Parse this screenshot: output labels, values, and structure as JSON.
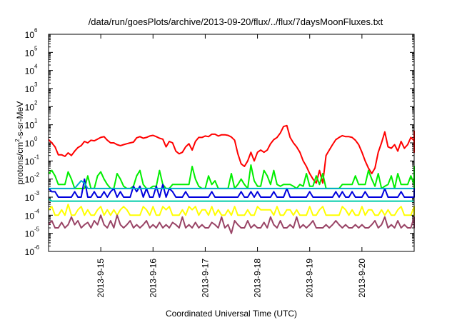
{
  "chart_data": {
    "type": "line",
    "title": "/data/run/goesPlots/archive/2013-09-20/flux/../flux/7daysMoonFluxes.txt",
    "xlabel": "Coordinated Universal Time (UTC)",
    "ylabel_base": "protons/cm",
    "ylabel_sup": "2",
    "ylabel_rest": "-s-sr-MeV",
    "yscale": "log",
    "ylim": [
      1e-06,
      1000000.0
    ],
    "ytick_exponents": [
      -6,
      -5,
      -4,
      -3,
      -2,
      -1,
      0,
      1,
      2,
      3,
      4,
      5,
      6
    ],
    "ytick_base": "10",
    "x_domain": [
      "2013-09-14",
      "2013-09-21"
    ],
    "x_ticks": [
      "2013-9-15",
      "2013-9-16",
      "2013-9-17",
      "2013-9-18",
      "2013-9-19",
      "2013-9-20"
    ],
    "x_samples_per_day": 16,
    "series": [
      {
        "color": "#ff0000",
        "values": [
          1.5,
          1,
          0.6,
          0.22,
          0.22,
          0.18,
          0.28,
          0.2,
          0.35,
          0.55,
          0.7,
          1.2,
          1,
          1.4,
          1.3,
          1.6,
          2,
          2.2,
          1.4,
          1,
          1,
          0.8,
          0.7,
          0.8,
          0.9,
          1,
          1.1,
          1.9,
          2.2,
          1.8,
          2,
          2.4,
          2.6,
          2.2,
          1.8,
          1.6,
          0.6,
          1.2,
          1,
          0.35,
          0.25,
          0.3,
          0.6,
          0.9,
          0.4,
          1.2,
          2,
          2,
          2.4,
          2.2,
          3,
          3,
          2.4,
          2.8,
          2.8,
          2.6,
          2.1,
          1.4,
          0.25,
          0.07,
          0.05,
          0.1,
          0.3,
          0.1,
          0.3,
          0.4,
          0.3,
          0.4,
          0.9,
          1.5,
          2,
          3.5,
          8,
          9,
          2,
          1,
          0.6,
          0.3,
          0.1,
          0.05,
          0.02,
          0.01,
          0.006,
          0.03,
          0.006,
          0.2,
          0.4,
          0.8,
          1.5,
          2,
          2.5,
          2.2,
          2.2,
          2,
          1.4,
          0.8,
          0.3,
          0.1,
          0.04,
          0.02,
          0.04,
          0.3,
          1,
          4,
          0.6,
          0.5,
          0.8,
          0.35,
          1.2,
          0.5,
          0.8,
          2,
          1.3,
          1.5,
          2.7,
          1.4,
          1.8,
          1.7,
          2,
          1.2,
          1.6,
          1.3,
          2.2,
          1.6,
          1,
          1.6,
          1.2,
          1.5,
          2,
          0.35,
          0.45,
          0.5,
          0.6,
          0.9,
          0.3,
          0.7,
          0.55,
          0.7,
          1,
          1.4,
          2.5,
          2.1,
          3,
          2.5,
          3.5,
          2.6,
          4.5,
          2.5,
          3.3,
          3
        ]
      },
      {
        "color": "#00ee00",
        "values": [
          0.02,
          0.03,
          0.015,
          0.005,
          0.005,
          0.005,
          0.025,
          0.01,
          0.003,
          0.003,
          0.003,
          0.003,
          0.015,
          0.003,
          0.003,
          0.015,
          0.025,
          0.01,
          0.005,
          0.003,
          0.003,
          0.02,
          0.01,
          0.004,
          0.003,
          0.003,
          0.004,
          0.015,
          0.03,
          0.005,
          0.003,
          0.003,
          0.004,
          0.004,
          0.03,
          0.005,
          0.003,
          0.003,
          0.005,
          0.005,
          0.005,
          0.005,
          0.005,
          0.005,
          0.05,
          0.01,
          0.004,
          0.003,
          0.003,
          0.015,
          0.005,
          0.008,
          0.003,
          0.003,
          0.003,
          0.003,
          0.02,
          0.003,
          0.005,
          0.01,
          0.005,
          0.003,
          0.06,
          0.008,
          0.004,
          0.004,
          0.03,
          0.015,
          0.005,
          0.03,
          0.005,
          0.004,
          0.005,
          0.005,
          0.005,
          0.004,
          0.003,
          0.005,
          0.004,
          0.02,
          0.004,
          0.004,
          0.015,
          0.005,
          0.02,
          0.003,
          0.003,
          0.003,
          0.003,
          0.003,
          0.005,
          0.005,
          0.005,
          0.005,
          0.015,
          0.005,
          0.005,
          0.005,
          0.03,
          0.01,
          0.004,
          0.02,
          0.003,
          0.004,
          0.005,
          0.015,
          0.003,
          0.02,
          0.005,
          0.005,
          0.005,
          0.015,
          0.005,
          0.005,
          0.02,
          0.003,
          0.003,
          0.003,
          0.005,
          0.003,
          0.003,
          0.004,
          0.005,
          0.02,
          0.03,
          0.005,
          0.02,
          0.005,
          0.05,
          0.005,
          0.02,
          0.005,
          0.004,
          0.03,
          0.005,
          0.005,
          0.03,
          0.01,
          0.003,
          0.03,
          0.005,
          0.005,
          0.005,
          0.004,
          0.05,
          0.01,
          0.02,
          0.02
        ]
      },
      {
        "color": "#0000dd",
        "values": [
          0.003,
          0.002,
          0.002,
          0.001,
          0.001,
          0.001,
          0.001,
          0.001,
          0.002,
          0.001,
          0.001,
          0.01,
          0.001,
          0.001,
          0.002,
          0.001,
          0.001,
          0.002,
          0.001,
          0.002,
          0.003,
          0.001,
          0.002,
          0.001,
          0.001,
          0.001,
          0.004,
          0.002,
          0.004,
          0.001,
          0.003,
          0.001,
          0.001,
          0.004,
          0.001,
          0.005,
          0.001,
          0.003,
          0.002,
          0.001,
          0.001,
          0.001,
          0.002,
          0.001,
          0.001,
          0.001,
          0.001,
          0.001,
          0.001,
          0.001,
          0.002,
          0.001,
          0.001,
          0.001,
          0.001,
          0.001,
          0.001,
          0.001,
          0.001,
          0.002,
          0.001,
          0.001,
          0.002,
          0.001,
          0.002,
          0.001,
          0.001,
          0.001,
          0.001,
          0.002,
          0.001,
          0.001,
          0.001,
          0.003,
          0.001,
          0.001,
          0.001,
          0.001,
          0.001,
          0.001,
          0.002,
          0.001,
          0.001,
          0.001,
          0.001,
          0.001,
          0.001,
          0.001,
          0.002,
          0.001,
          0.002,
          0.001,
          0.001,
          0.002,
          0.001,
          0.001,
          0.001,
          0.002,
          0.001,
          0.001,
          0.001,
          0.001,
          0.001,
          0.003,
          0.001,
          0.001,
          0.001,
          0.001,
          0.002,
          0.001,
          0.001,
          0.001,
          0.001,
          0.001,
          0.001,
          0.003,
          0.001,
          0.001,
          0.002,
          0.001,
          0.001,
          0.001,
          0.001,
          0.001,
          0.001,
          0.001,
          0.001,
          0.001,
          0.001,
          0.001,
          0.001,
          0.001,
          0.003,
          0.001,
          0.001,
          0.001,
          0.001,
          0.001,
          0.001,
          0.002,
          0.001,
          0.001,
          0.001,
          0.001,
          0.001,
          0.001,
          0.001,
          0.001
        ]
      },
      {
        "color": "#00aacc",
        "values": [
          0.003,
          0.003,
          0.003,
          0.003,
          0.003,
          0.003,
          0.003,
          0.003,
          0.003,
          0.005,
          0.008,
          0.006,
          0.003,
          0.003,
          0.003,
          0.003,
          0.003,
          0.003,
          0.003,
          0.003,
          0.003,
          0.003,
          0.003,
          0.003,
          0.003,
          0.003,
          0.003,
          0.003,
          0.003,
          0.003,
          0.003,
          0.003,
          0.003,
          0.003,
          0.003,
          0.003,
          0.003,
          0.003,
          0.003,
          0.003,
          0.003,
          0.003,
          0.003,
          0.003,
          0.003,
          0.003,
          0.003,
          0.003,
          0.003,
          0.003,
          0.003,
          0.003,
          0.003,
          0.003,
          0.003,
          0.003,
          0.003,
          0.003,
          0.003,
          0.003,
          0.003,
          0.003,
          0.003,
          0.003,
          0.003,
          0.003,
          0.003,
          0.003,
          0.003,
          0.003,
          0.003,
          0.003,
          0.003,
          0.003,
          0.003,
          0.003,
          0.003,
          0.003,
          0.003,
          0.003,
          0.003,
          0.003,
          0.003,
          0.003,
          0.003,
          0.003,
          0.003,
          0.003,
          0.003,
          0.003,
          0.003,
          0.003,
          0.003,
          0.003,
          0.003,
          0.003,
          0.003,
          0.003,
          0.003,
          0.003,
          0.003,
          0.003,
          0.003,
          0.003,
          0.003,
          0.003,
          0.003,
          0.003,
          0.003,
          0.003,
          0.003,
          0.003,
          0.003,
          0.003,
          0.003,
          0.003,
          0.003,
          0.003,
          0.003,
          0.003,
          0.003,
          0.003,
          0.003,
          0.003,
          0.003,
          0.003,
          0.003,
          0.003,
          0.003,
          0.003,
          0.003,
          0.003,
          0.003,
          0.003,
          0.003,
          0.003,
          0.003,
          0.003,
          0.003,
          0.003,
          0.003,
          0.003,
          0.003,
          0.003,
          0.003,
          0.003,
          0.003,
          0.003,
          0.003,
          0.003
        ]
      },
      {
        "color": "#00ccaa",
        "values": [
          0.0008,
          0.0006,
          0.0006,
          0.0006,
          0.0006,
          0.0006,
          0.0006,
          0.0006,
          0.0006,
          0.0006,
          0.0006,
          0.0006,
          0.0006,
          0.0006,
          0.0006,
          0.0006,
          0.0006,
          0.0006,
          0.0006,
          0.0006,
          0.0006,
          0.0006,
          0.0006,
          0.0006,
          0.0006,
          0.0006,
          0.0006,
          0.0006,
          0.0006,
          0.0006,
          0.0006,
          0.0006,
          0.0006,
          0.0006,
          0.0006,
          0.0006,
          0.0006,
          0.0006,
          0.0006,
          0.0006,
          0.0006,
          0.0006,
          0.0006,
          0.0006,
          0.0006,
          0.0006,
          0.0006,
          0.0006,
          0.0006,
          0.0006,
          0.0006,
          0.0006,
          0.0006,
          0.0006,
          0.0006,
          0.0006,
          0.0006,
          0.0006,
          0.0006,
          0.0006,
          0.0006,
          0.0006,
          0.0006,
          0.0006,
          0.0006,
          0.0006,
          0.0006,
          0.0006,
          0.0006,
          0.0006,
          0.0006,
          0.0006,
          0.0006,
          0.0006,
          0.0006,
          0.0006,
          0.0006,
          0.0006,
          0.0006,
          0.0006,
          0.0006,
          0.0006,
          0.0006,
          0.0006,
          0.0006,
          0.0006,
          0.0006,
          0.0006,
          0.0006,
          0.0006,
          0.0006,
          0.0006,
          0.0006,
          0.0006,
          0.0006,
          0.0006,
          0.0006,
          0.0006,
          0.0006,
          0.0006,
          0.0006,
          0.0006,
          0.0006,
          0.0006,
          0.0006,
          0.0006,
          0.0006,
          0.0006,
          0.0006,
          0.0006,
          0.0006,
          0.0006,
          0.0006,
          0.0006,
          0.0006,
          0.0006,
          0.0006,
          0.0006,
          0.0006,
          0.0006,
          0.0006,
          0.0006,
          0.0006,
          0.0006,
          0.0006,
          0.0006,
          0.0006,
          0.0006,
          0.0006,
          0.0006,
          0.0006,
          0.0006,
          0.0006,
          0.0006,
          0.0006,
          0.0006,
          0.0006,
          0.0006,
          0.0006,
          0.0006,
          0.0006,
          0.0006,
          0.0006,
          0.0006,
          0.0006,
          0.0006,
          0.0006,
          0.0006,
          0.0006,
          0.0006,
          0.0006,
          0.0006
        ]
      },
      {
        "color": "#ffff00",
        "values": [
          0.0002,
          0.0003,
          0.0001,
          0.0001,
          0.0002,
          0.0001,
          0.0004,
          0.0001,
          0.0001,
          0.0002,
          0.0003,
          0.0001,
          0.0002,
          0.0001,
          0.0001,
          0.0002,
          0.0003,
          0.0001,
          0.0002,
          0.0001,
          0.0002,
          0.0001,
          0.0002,
          0.0003,
          0.0002,
          0.0001,
          0.0001,
          0.0001,
          0.0001,
          0.0003,
          0.0002,
          0.0001,
          0.0003,
          0.0001,
          0.0001,
          0.0003,
          0.0002,
          0.0003,
          0.0001,
          0.0001,
          0.0001,
          0.0002,
          0.0001,
          0.0003,
          0.0002,
          0.0003,
          0.0001,
          0.0002,
          0.0002,
          0.0001,
          0.0003,
          0.0001,
          0.0002,
          0.0001,
          0.0001,
          0.0002,
          0.0001,
          0.0003,
          0.0001,
          0.0001,
          0.0001,
          0.0002,
          0.0001,
          0.0001,
          0.0003,
          0.0002,
          0.0002,
          0.0002,
          0.0002,
          0.0001,
          0.0003,
          0.0001,
          0.0001,
          0.0002,
          0.0002,
          0.0001,
          0.0002,
          0.0001,
          0.0001,
          0.0001,
          0.0003,
          0.0001,
          0.0001,
          0.0002,
          0.0003,
          0.0001,
          0.0001,
          0.0001,
          0.0001,
          0.0001,
          0.0003,
          0.0002,
          0.0001,
          0.0002,
          0.0001,
          0.0001,
          0.0003,
          0.0001,
          0.0002,
          0.0002,
          0.0001,
          0.0001,
          0.0002,
          0.0001,
          0.0002,
          0.0001,
          0.0001,
          0.0002,
          0.0003,
          0.0001,
          0.0001,
          0.0001,
          0.0003,
          0.0001,
          0.0002,
          0.0003,
          0.0001,
          0.0002,
          0.0001,
          0.0001,
          0.0001,
          0.0001,
          0.0003,
          0.0001,
          0.0001,
          0.0001,
          0.0003,
          0.0001,
          0.0002,
          0.0001,
          0.0001,
          0.0002,
          0.0003,
          0.0001,
          0.0001,
          0.0001,
          0.0002,
          0.0001,
          0.0003,
          0.0001,
          0.0001,
          0.0002,
          0.0001,
          0.0001,
          0.0001,
          0.0003,
          0.0001,
          0.0002
        ]
      },
      {
        "color": "#994466",
        "values": [
          3e-05,
          5e-05,
          2e-05,
          2e-05,
          4e-05,
          2e-05,
          3e-05,
          8e-05,
          3e-05,
          5e-05,
          2e-05,
          3e-05,
          4e-05,
          2e-05,
          5e-05,
          3e-05,
          0.0001,
          3e-05,
          2e-05,
          5e-05,
          2e-05,
          0.0001,
          3e-05,
          2e-05,
          3e-05,
          5e-05,
          2e-05,
          3e-05,
          2e-05,
          3e-05,
          5e-05,
          2e-05,
          3e-05,
          2e-05,
          4e-05,
          2e-05,
          3e-05,
          2e-05,
          4e-05,
          3e-05,
          2e-05,
          8e-05,
          2e-05,
          3e-05,
          2e-05,
          4e-05,
          2e-05,
          3e-05,
          2e-05,
          2e-05,
          4e-05,
          3e-05,
          2e-05,
          8e-05,
          2e-05,
          3e-05,
          1e-05,
          5e-05,
          3e-05,
          2e-05,
          2e-05,
          5e-05,
          2e-05,
          3e-05,
          2e-05,
          2e-05,
          4e-05,
          2e-05,
          8e-05,
          3e-05,
          2e-05,
          5e-05,
          2e-05,
          2e-05,
          3e-05,
          2e-05,
          8e-05,
          2e-05,
          3e-05,
          2e-05,
          3e-05,
          5e-05,
          2e-05,
          2e-05,
          2e-05,
          3e-05,
          2e-05,
          3e-05,
          5e-05,
          3e-05,
          2e-05,
          3e-05,
          2e-05,
          2e-05,
          3e-05,
          2e-05,
          3e-05,
          2e-05,
          2e-05,
          3e-05,
          5e-05,
          2e-05,
          3e-05,
          8e-05,
          2e-05,
          3e-05,
          2e-05,
          5e-05,
          2e-05,
          3e-05,
          2e-05,
          2e-05,
          8e-05,
          2e-05,
          3e-05,
          2e-05,
          2e-05,
          8e-05,
          3e-05,
          2e-05,
          3e-05,
          2e-05,
          3e-05,
          2e-05,
          8e-05,
          2e-05,
          3e-05,
          5e-05,
          2e-05,
          2e-05,
          3e-05,
          3e-05,
          8e-05,
          2e-05,
          3e-05,
          2e-05,
          3e-05,
          5e-05,
          3e-05,
          2e-05,
          3e-05,
          8e-05,
          3e-05,
          2e-05,
          5e-05,
          3e-05,
          2e-05,
          3e-05,
          2e-05,
          2e-05
        ]
      }
    ]
  }
}
